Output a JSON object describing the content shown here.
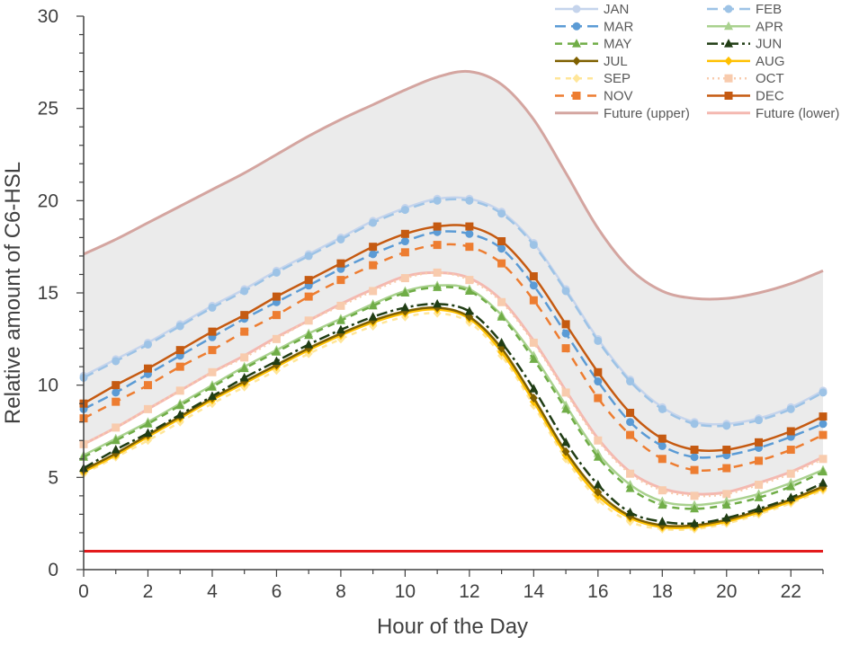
{
  "chart_data": {
    "type": "line",
    "title": "",
    "xlabel": "Hour of the Day",
    "ylabel": "Relative amount of C6-HSL",
    "xlim": [
      0,
      23
    ],
    "ylim": [
      0,
      30
    ],
    "x_ticks": [
      "0",
      "2",
      "4",
      "6",
      "8",
      "10",
      "12",
      "14",
      "16",
      "18",
      "20",
      "22"
    ],
    "x_tick_values": [
      0,
      2,
      4,
      6,
      8,
      10,
      12,
      14,
      16,
      18,
      20,
      22
    ],
    "y_ticks": [
      "0",
      "5",
      "10",
      "15",
      "20",
      "25",
      "30"
    ],
    "y_tick_values": [
      0,
      5,
      10,
      15,
      20,
      25,
      30
    ],
    "x": [
      0,
      1,
      2,
      3,
      4,
      5,
      6,
      7,
      8,
      9,
      10,
      11,
      12,
      13,
      14,
      15,
      16,
      17,
      18,
      19,
      20,
      21,
      22,
      23
    ],
    "legend_position": "top-right",
    "threshold": {
      "value": 1.0,
      "color": "#e31a1c"
    },
    "band": {
      "between": [
        "Future (upper)",
        "Future (lower)"
      ],
      "color": "#e8e8e8"
    },
    "series": [
      {
        "name": "JAN",
        "color": "#c5d4ec",
        "dash": "",
        "marker": "circle",
        "values": [
          10.5,
          11.4,
          12.3,
          13.3,
          14.3,
          15.2,
          16.2,
          17.1,
          18.0,
          18.9,
          19.6,
          20.1,
          20.1,
          19.4,
          17.7,
          15.2,
          12.5,
          10.3,
          8.8,
          8.0,
          7.9,
          8.2,
          8.8,
          9.7
        ]
      },
      {
        "name": "FEB",
        "color": "#9dc3e6",
        "dash": "12,6",
        "marker": "circle",
        "values": [
          10.4,
          11.3,
          12.2,
          13.2,
          14.2,
          15.1,
          16.1,
          17.0,
          17.9,
          18.8,
          19.5,
          20.0,
          20.0,
          19.3,
          17.6,
          15.1,
          12.4,
          10.2,
          8.7,
          7.9,
          7.8,
          8.1,
          8.7,
          9.6
        ]
      },
      {
        "name": "MAR",
        "color": "#5b9bd5",
        "dash": "12,6",
        "marker": "circle",
        "values": [
          8.7,
          9.6,
          10.6,
          11.6,
          12.6,
          13.6,
          14.5,
          15.4,
          16.3,
          17.1,
          17.8,
          18.3,
          18.2,
          17.4,
          15.4,
          12.8,
          10.2,
          8.0,
          6.7,
          6.1,
          6.2,
          6.6,
          7.2,
          7.9
        ]
      },
      {
        "name": "APR",
        "color": "#a9d18e",
        "dash": "",
        "marker": "triangle",
        "values": [
          6.2,
          7.1,
          8.0,
          9.0,
          10.0,
          11.0,
          11.9,
          12.8,
          13.6,
          14.4,
          15.1,
          15.4,
          15.2,
          13.8,
          11.6,
          8.9,
          6.3,
          4.6,
          3.7,
          3.5,
          3.7,
          4.1,
          4.7,
          5.4
        ]
      },
      {
        "name": "MAY",
        "color": "#70ad47",
        "dash": "8,6",
        "marker": "triangle",
        "values": [
          6.1,
          7.0,
          7.9,
          8.9,
          9.9,
          10.9,
          11.8,
          12.7,
          13.5,
          14.3,
          15.0,
          15.3,
          15.1,
          13.7,
          11.4,
          8.7,
          6.1,
          4.4,
          3.5,
          3.3,
          3.5,
          3.9,
          4.5,
          5.3
        ]
      },
      {
        "name": "JUN",
        "color": "#203d14",
        "dash": "12,4,3,4",
        "marker": "triangle",
        "values": [
          5.5,
          6.5,
          7.4,
          8.4,
          9.4,
          10.4,
          11.3,
          12.2,
          13.0,
          13.7,
          14.2,
          14.4,
          14.0,
          12.3,
          9.8,
          6.9,
          4.6,
          3.1,
          2.6,
          2.5,
          2.8,
          3.3,
          3.9,
          4.7
        ]
      },
      {
        "name": "JUL",
        "color": "#7f6000",
        "dash": "",
        "marker": "diamond",
        "values": [
          5.4,
          6.3,
          7.3,
          8.3,
          9.3,
          10.2,
          11.1,
          12.0,
          12.8,
          13.5,
          14.0,
          14.2,
          13.7,
          12.0,
          9.3,
          6.4,
          4.2,
          2.9,
          2.4,
          2.4,
          2.7,
          3.2,
          3.8,
          4.5
        ]
      },
      {
        "name": "AUG",
        "color": "#ffc000",
        "dash": "",
        "marker": "diamond",
        "values": [
          5.3,
          6.2,
          7.2,
          8.2,
          9.2,
          10.1,
          11.0,
          11.9,
          12.7,
          13.4,
          13.9,
          14.1,
          13.6,
          11.8,
          9.1,
          6.2,
          4.0,
          2.8,
          2.3,
          2.3,
          2.6,
          3.1,
          3.7,
          4.4
        ]
      },
      {
        "name": "SEP",
        "color": "#ffe699",
        "dash": "6,6",
        "marker": "diamond",
        "values": [
          5.2,
          6.1,
          7.0,
          8.0,
          9.0,
          9.9,
          10.8,
          11.7,
          12.5,
          13.2,
          13.7,
          13.9,
          13.4,
          11.6,
          8.9,
          6.0,
          3.8,
          2.6,
          2.2,
          2.2,
          2.5,
          3.0,
          3.6,
          4.3
        ]
      },
      {
        "name": "OCT",
        "color": "#f8cbad",
        "dash": "2,4",
        "marker": "square",
        "values": [
          6.8,
          7.7,
          8.7,
          9.7,
          10.7,
          11.5,
          12.5,
          13.5,
          14.3,
          15.1,
          15.8,
          16.1,
          15.7,
          14.5,
          12.3,
          9.6,
          7.0,
          5.2,
          4.3,
          4.0,
          4.1,
          4.6,
          5.2,
          6.0
        ]
      },
      {
        "name": "NOV",
        "color": "#ed7d31",
        "dash": "10,8",
        "marker": "square",
        "values": [
          8.2,
          9.1,
          10.0,
          11.0,
          11.9,
          12.9,
          13.8,
          14.8,
          15.7,
          16.5,
          17.2,
          17.6,
          17.5,
          16.6,
          14.6,
          12.0,
          9.3,
          7.3,
          6.0,
          5.4,
          5.5,
          5.9,
          6.5,
          7.3
        ]
      },
      {
        "name": "DEC",
        "color": "#c55a11",
        "dash": "",
        "marker": "square",
        "values": [
          9.0,
          10.0,
          10.9,
          11.9,
          12.9,
          13.8,
          14.8,
          15.7,
          16.6,
          17.5,
          18.2,
          18.6,
          18.6,
          17.8,
          15.9,
          13.3,
          10.7,
          8.5,
          7.1,
          6.5,
          6.5,
          6.9,
          7.5,
          8.3
        ]
      },
      {
        "name": "Future (upper)",
        "color": "#d4a5a0",
        "dash": "",
        "marker": "none",
        "values": [
          17.1,
          17.9,
          18.8,
          19.7,
          20.6,
          21.5,
          22.5,
          23.5,
          24.4,
          25.2,
          26.0,
          26.7,
          27.0,
          26.3,
          24.4,
          21.5,
          18.5,
          16.3,
          15.1,
          14.7,
          14.7,
          15.0,
          15.5,
          16.2
        ]
      },
      {
        "name": "Future (lower)",
        "color": "#f4b8b0",
        "dash": "",
        "marker": "none",
        "values": [
          6.8,
          7.7,
          8.7,
          9.7,
          10.7,
          11.6,
          12.6,
          13.5,
          14.4,
          15.2,
          15.9,
          16.1,
          15.8,
          14.6,
          12.4,
          9.7,
          7.1,
          5.3,
          4.4,
          4.1,
          4.2,
          4.7,
          5.3,
          6.1
        ]
      }
    ]
  }
}
